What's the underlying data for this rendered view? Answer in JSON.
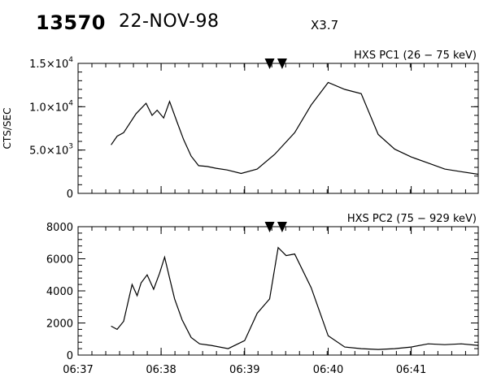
{
  "header": {
    "event_id": "13570",
    "date": "22-NOV-98",
    "flare_class": "X3.7"
  },
  "chart_data": [
    {
      "type": "line",
      "title": "HXS PC1 (26 − 75 keV)",
      "ylabel": "CTS/SEC",
      "xlabel": "",
      "ylim": [
        0,
        15000
      ],
      "yticks": [
        {
          "value": 0,
          "base": "0",
          "exp": ""
        },
        {
          "value": 5000,
          "base": "5.0×10",
          "exp": "3"
        },
        {
          "value": 10000,
          "base": "1.0×10",
          "exp": "4"
        },
        {
          "value": 15000,
          "base": "1.5×10",
          "exp": "4"
        }
      ],
      "markers_x": [
        6.655,
        6.6575
      ],
      "series": [
        {
          "x": [
            6.6233,
            6.6245,
            6.6258,
            6.6283,
            6.6303,
            6.6315,
            6.6325,
            6.6338,
            6.635,
            6.6365,
            6.6378,
            6.6393,
            6.6408,
            6.6425,
            6.6443,
            6.6465,
            6.6493,
            6.6525,
            6.656,
            6.66,
            6.6633,
            6.6667,
            6.67,
            6.6733,
            6.6767,
            6.68,
            6.6833,
            6.6867,
            6.69,
            6.6933,
            6.6967
          ],
          "y": [
            5600,
            6600,
            7000,
            9200,
            10400,
            9000,
            9600,
            8700,
            10600,
            8200,
            6200,
            4300,
            3200,
            3100,
            2900,
            2700,
            2300,
            2800,
            4500,
            7000,
            10200,
            12800,
            12000,
            11500,
            6800,
            5100,
            4200,
            3500,
            2800,
            2500,
            2200
          ]
        }
      ]
    },
    {
      "type": "line",
      "title": "HXS PC2 (75 − 929 keV)",
      "ylabel": "",
      "xlabel": "",
      "ylim": [
        0,
        8000
      ],
      "yticks": [
        {
          "value": 0,
          "base": "0",
          "exp": ""
        },
        {
          "value": 2000,
          "base": "2000",
          "exp": ""
        },
        {
          "value": 4000,
          "base": "4000",
          "exp": ""
        },
        {
          "value": 6000,
          "base": "6000",
          "exp": ""
        },
        {
          "value": 8000,
          "base": "8000",
          "exp": ""
        }
      ],
      "markers_x": [
        6.655,
        6.6575
      ],
      "series": [
        {
          "x": [
            6.6233,
            6.6245,
            6.6258,
            6.6275,
            6.6285,
            6.6293,
            6.6305,
            6.6318,
            6.633,
            6.634,
            6.635,
            6.636,
            6.6375,
            6.6393,
            6.641,
            6.6433,
            6.6467,
            6.65,
            6.6525,
            6.655,
            6.6567,
            6.6583,
            6.66,
            6.6633,
            6.6667,
            6.67,
            6.6733,
            6.6767,
            6.68,
            6.6833,
            6.6867,
            6.69,
            6.6933,
            6.6967
          ],
          "y": [
            1800,
            1600,
            2100,
            4400,
            3700,
            4500,
            5000,
            4100,
            5100,
            6100,
            4800,
            3500,
            2200,
            1100,
            700,
            600,
            400,
            900,
            2600,
            3500,
            6700,
            6200,
            6300,
            4200,
            1200,
            500,
            400,
            350,
            400,
            500,
            700,
            650,
            700,
            600
          ]
        }
      ]
    }
  ],
  "x_axis": {
    "range": [
      6.6167,
      6.6967
    ],
    "ticks": [
      {
        "value": 6.6167,
        "label": "06:37"
      },
      {
        "value": 6.6333,
        "label": "06:38"
      },
      {
        "value": 6.65,
        "label": "06:39"
      },
      {
        "value": 6.6667,
        "label": "06:40"
      },
      {
        "value": 6.6833,
        "label": "06:41"
      }
    ]
  }
}
